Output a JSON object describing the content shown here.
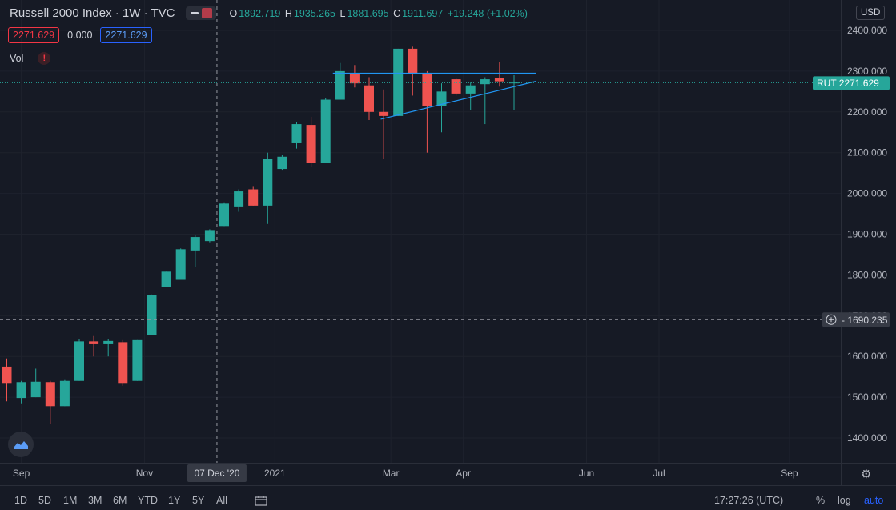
{
  "header": {
    "title": "Russell 2000 Index · 1W · TVC",
    "ohlc": [
      {
        "k": "O",
        "v": "1892.719"
      },
      {
        "k": "H",
        "v": "1935.265"
      },
      {
        "k": "L",
        "v": "1881.695"
      },
      {
        "k": "C",
        "v": "1911.697"
      }
    ],
    "change": "+19.248 (+1.02%)"
  },
  "values": {
    "left": "2271.629",
    "zero": "0.000",
    "right": "2271.629"
  },
  "vol": {
    "label": "Vol",
    "warning": "!"
  },
  "currency": "USD",
  "price_tag": {
    "symbol": "RUT",
    "price": "2271.629"
  },
  "crosshair": {
    "price": "1690.235",
    "date": "07 Dec '20"
  },
  "timeframes": [
    "1D",
    "5D",
    "1M",
    "3M",
    "6M",
    "YTD",
    "1Y",
    "5Y",
    "All"
  ],
  "bottom_right": {
    "time": "17:27:26 (UTC)",
    "percent": "%",
    "log": "log",
    "auto": "auto"
  },
  "colors": {
    "up": "#26a69a",
    "down": "#ef5350",
    "background": "#161a25",
    "trendline": "#2196f3",
    "price_tag": "#26a69a"
  },
  "chart_data": {
    "type": "candlestick",
    "ylim": [
      1330,
      2450
    ],
    "yticks": [
      1400,
      1500,
      1600,
      1700,
      1800,
      1900,
      2000,
      2100,
      2200,
      2300,
      2400
    ],
    "ytick_labels": [
      "1400.000",
      "1500.000",
      "1600.000",
      "1700.000",
      "1800.000",
      "1900.000",
      "2000.000",
      "2100.000",
      "2200.000",
      "2300.000",
      "2400.000"
    ],
    "grid": true,
    "xticks": [
      {
        "label": "Sep",
        "i": 1
      },
      {
        "label": "Nov",
        "i": 9.5
      },
      {
        "label": "2021",
        "i": 18.5
      },
      {
        "label": "Mar",
        "i": 26.5
      },
      {
        "label": "Apr",
        "i": 31.5
      },
      {
        "label": "Jun",
        "i": 40
      },
      {
        "label": "Jul",
        "i": 45
      },
      {
        "label": "Sep",
        "i": 54
      }
    ],
    "crosshair_index": 14.5,
    "crosshair_price": 1690.235,
    "last_price": 2271.629,
    "candles": [
      {
        "o": 1575,
        "h": 1595,
        "l": 1490,
        "c": 1535
      },
      {
        "o": 1498,
        "h": 1540,
        "l": 1485,
        "c": 1537
      },
      {
        "o": 1500,
        "h": 1570,
        "l": 1500,
        "c": 1538
      },
      {
        "o": 1537,
        "h": 1540,
        "l": 1435,
        "c": 1478
      },
      {
        "o": 1478,
        "h": 1542,
        "l": 1478,
        "c": 1540
      },
      {
        "o": 1540,
        "h": 1642,
        "l": 1540,
        "c": 1637
      },
      {
        "o": 1637,
        "h": 1650,
        "l": 1600,
        "c": 1630
      },
      {
        "o": 1630,
        "h": 1642,
        "l": 1600,
        "c": 1638
      },
      {
        "o": 1635,
        "h": 1640,
        "l": 1528,
        "c": 1535
      },
      {
        "o": 1540,
        "h": 1640,
        "l": 1540,
        "c": 1640
      },
      {
        "o": 1652,
        "h": 1752,
        "l": 1652,
        "c": 1750
      },
      {
        "o": 1770,
        "h": 1808,
        "l": 1770,
        "c": 1808
      },
      {
        "o": 1788,
        "h": 1865,
        "l": 1788,
        "c": 1863
      },
      {
        "o": 1860,
        "h": 1897,
        "l": 1820,
        "c": 1893
      },
      {
        "o": 1883,
        "h": 1912,
        "l": 1880,
        "c": 1910
      },
      {
        "o": 1920,
        "h": 1978,
        "l": 1920,
        "c": 1975
      },
      {
        "o": 1968,
        "h": 2010,
        "l": 1955,
        "c": 2005
      },
      {
        "o": 2010,
        "h": 2018,
        "l": 1970,
        "c": 1970
      },
      {
        "o": 1970,
        "h": 2100,
        "l": 1925,
        "c": 2085
      },
      {
        "o": 2060,
        "h": 2095,
        "l": 2058,
        "c": 2090
      },
      {
        "o": 2125,
        "h": 2175,
        "l": 2110,
        "c": 2170
      },
      {
        "o": 2168,
        "h": 2188,
        "l": 2065,
        "c": 2075
      },
      {
        "o": 2075,
        "h": 2235,
        "l": 2075,
        "c": 2230
      },
      {
        "o": 2230,
        "h": 2320,
        "l": 2230,
        "c": 2300
      },
      {
        "o": 2295,
        "h": 2315,
        "l": 2260,
        "c": 2270
      },
      {
        "o": 2265,
        "h": 2285,
        "l": 2180,
        "c": 2200
      },
      {
        "o": 2200,
        "h": 2255,
        "l": 2085,
        "c": 2190
      },
      {
        "o": 2190,
        "h": 2355,
        "l": 2190,
        "c": 2355
      },
      {
        "o": 2355,
        "h": 2360,
        "l": 2240,
        "c": 2295
      },
      {
        "o": 2295,
        "h": 2300,
        "l": 2100,
        "c": 2215
      },
      {
        "o": 2215,
        "h": 2270,
        "l": 2150,
        "c": 2250
      },
      {
        "o": 2280,
        "h": 2282,
        "l": 2240,
        "c": 2245
      },
      {
        "o": 2245,
        "h": 2272,
        "l": 2205,
        "c": 2265
      },
      {
        "o": 2268,
        "h": 2285,
        "l": 2170,
        "c": 2280
      },
      {
        "o": 2283,
        "h": 2322,
        "l": 2262,
        "c": 2275
      },
      {
        "o": 2270,
        "h": 2290,
        "l": 2205,
        "c": 2272
      }
    ],
    "trendlines": [
      {
        "from": {
          "i": 22.5,
          "p": 2295
        },
        "to": {
          "i": 36.5,
          "p": 2295
        }
      },
      {
        "from": {
          "i": 25.8,
          "p": 2182
        },
        "to": {
          "i": 36.5,
          "p": 2275
        }
      }
    ]
  }
}
